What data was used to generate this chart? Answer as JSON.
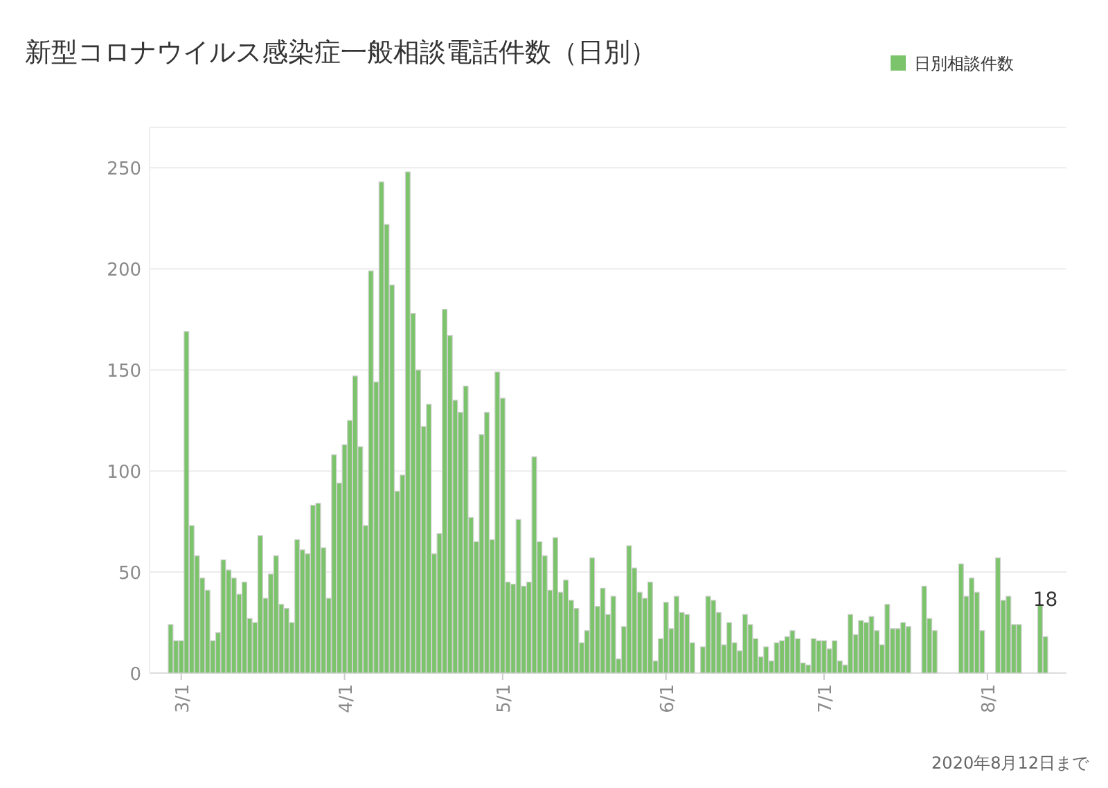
{
  "chart_data": {
    "type": "bar",
    "title": "新型コロナウイルス感染症一般相談電話件数（日別）",
    "x": [
      "2020-02-28",
      "2020-02-29",
      "2020-03-01",
      "2020-03-02",
      "2020-03-03",
      "2020-03-04",
      "2020-03-05",
      "2020-03-06",
      "2020-03-07",
      "2020-03-08",
      "2020-03-09",
      "2020-03-10",
      "2020-03-11",
      "2020-03-12",
      "2020-03-13",
      "2020-03-14",
      "2020-03-15",
      "2020-03-16",
      "2020-03-17",
      "2020-03-18",
      "2020-03-19",
      "2020-03-20",
      "2020-03-21",
      "2020-03-22",
      "2020-03-23",
      "2020-03-24",
      "2020-03-25",
      "2020-03-26",
      "2020-03-27",
      "2020-03-28",
      "2020-03-29",
      "2020-03-30",
      "2020-03-31",
      "2020-04-01",
      "2020-04-02",
      "2020-04-03",
      "2020-04-04",
      "2020-04-05",
      "2020-04-06",
      "2020-04-07",
      "2020-04-08",
      "2020-04-09",
      "2020-04-10",
      "2020-04-11",
      "2020-04-12",
      "2020-04-13",
      "2020-04-14",
      "2020-04-15",
      "2020-04-16",
      "2020-04-17",
      "2020-04-18",
      "2020-04-19",
      "2020-04-20",
      "2020-04-21",
      "2020-04-22",
      "2020-04-23",
      "2020-04-24",
      "2020-04-25",
      "2020-04-26",
      "2020-04-27",
      "2020-04-28",
      "2020-04-29",
      "2020-04-30",
      "2020-05-01",
      "2020-05-02",
      "2020-05-03",
      "2020-05-04",
      "2020-05-05",
      "2020-05-06",
      "2020-05-07",
      "2020-05-08",
      "2020-05-09",
      "2020-05-10",
      "2020-05-11",
      "2020-05-12",
      "2020-05-13",
      "2020-05-14",
      "2020-05-15",
      "2020-05-16",
      "2020-05-17",
      "2020-05-18",
      "2020-05-19",
      "2020-05-20",
      "2020-05-21",
      "2020-05-22",
      "2020-05-23",
      "2020-05-24",
      "2020-05-25",
      "2020-05-26",
      "2020-05-27",
      "2020-05-28",
      "2020-05-29",
      "2020-05-30",
      "2020-05-31",
      "2020-06-01",
      "2020-06-02",
      "2020-06-03",
      "2020-06-04",
      "2020-06-05",
      "2020-06-06",
      "2020-06-08",
      "2020-06-09",
      "2020-06-10",
      "2020-06-11",
      "2020-06-12",
      "2020-06-13",
      "2020-06-14",
      "2020-06-15",
      "2020-06-16",
      "2020-06-17",
      "2020-06-18",
      "2020-06-19",
      "2020-06-20",
      "2020-06-21",
      "2020-06-22",
      "2020-06-23",
      "2020-06-24",
      "2020-06-25",
      "2020-06-26",
      "2020-06-27",
      "2020-06-28",
      "2020-06-29",
      "2020-06-30",
      "2020-07-01",
      "2020-07-02",
      "2020-07-03",
      "2020-07-04",
      "2020-07-05",
      "2020-07-06",
      "2020-07-07",
      "2020-07-08",
      "2020-07-09",
      "2020-07-10",
      "2020-07-11",
      "2020-07-12",
      "2020-07-13",
      "2020-07-14",
      "2020-07-15",
      "2020-07-16",
      "2020-07-17",
      "2020-07-20",
      "2020-07-21",
      "2020-07-22",
      "2020-07-27",
      "2020-07-28",
      "2020-07-29",
      "2020-07-30",
      "2020-07-31",
      "2020-08-03",
      "2020-08-04",
      "2020-08-05",
      "2020-08-06",
      "2020-08-07",
      "2020-08-11",
      "2020-08-12"
    ],
    "series": [
      {
        "name": "日別相談件数",
        "color": "#7cc46b",
        "values": [
          24,
          16,
          16,
          169,
          73,
          58,
          47,
          41,
          16,
          20,
          56,
          51,
          47,
          39,
          45,
          27,
          25,
          68,
          37,
          49,
          58,
          34,
          32,
          25,
          66,
          61,
          59,
          83,
          84,
          62,
          37,
          108,
          94,
          113,
          125,
          147,
          112,
          73,
          199,
          144,
          243,
          222,
          192,
          90,
          98,
          248,
          178,
          150,
          122,
          133,
          59,
          69,
          180,
          167,
          135,
          129,
          142,
          77,
          65,
          118,
          129,
          66,
          149,
          136,
          45,
          44,
          76,
          43,
          45,
          107,
          65,
          58,
          41,
          67,
          40,
          46,
          36,
          32,
          15,
          21,
          57,
          33,
          42,
          29,
          38,
          7,
          23,
          63,
          52,
          40,
          37,
          45,
          6,
          17,
          35,
          22,
          38,
          30,
          29,
          15,
          13,
          38,
          36,
          30,
          14,
          25,
          15,
          11,
          29,
          24,
          17,
          8,
          13,
          6,
          15,
          16,
          18,
          21,
          17,
          5,
          4,
          17,
          16,
          16,
          12,
          16,
          6,
          4,
          29,
          19,
          26,
          25,
          28,
          21,
          14,
          34,
          22,
          22,
          25,
          23,
          43,
          27,
          21,
          54,
          38,
          47,
          40,
          21,
          57,
          36,
          38,
          24,
          24,
          34,
          18
        ]
      }
    ],
    "xlim": [
      "2020-02-24",
      "2020-08-16"
    ],
    "xticks": [
      {
        "value": "2020-03-01",
        "label": "3/1"
      },
      {
        "value": "2020-04-01",
        "label": "4/1"
      },
      {
        "value": "2020-05-01",
        "label": "5/1"
      },
      {
        "value": "2020-06-01",
        "label": "6/1"
      },
      {
        "value": "2020-07-01",
        "label": "7/1"
      },
      {
        "value": "2020-08-01",
        "label": "8/1"
      }
    ],
    "ylim": [
      0,
      270
    ],
    "yticks": [
      0,
      50,
      100,
      150,
      200,
      250
    ],
    "grid": "y",
    "legend": "top right",
    "annotations": [
      {
        "text": "18",
        "x": "2020-08-12",
        "y": 18
      },
      "2020年8月12日まで"
    ]
  }
}
